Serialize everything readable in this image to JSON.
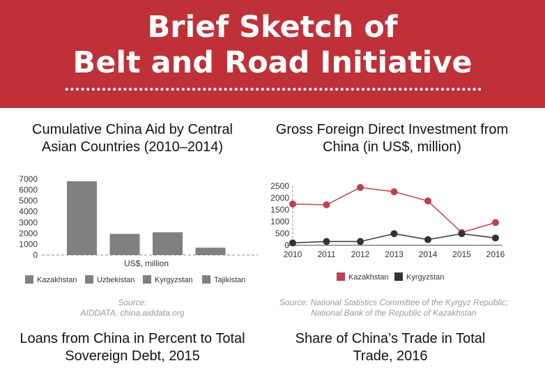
{
  "header": {
    "title_line1": "Brief Sketch of",
    "title_line2": "Belt and Road Initiative"
  },
  "aid_panel": {
    "title_line1": "Cumulative China Aid by Central",
    "title_line2": "Asian Countries (2010–2014)",
    "source_line1": "Source:",
    "source_line2": "AIDDATA, china.aiddata.org"
  },
  "fdi_panel": {
    "title_line1": "Gross Foreign Direct Investment from",
    "title_line2": "China (in US$, million)",
    "source_line1": "Source: National Statistics Committee of the Kyrgyz Republic;",
    "source_line2": "National Bank of the Republic of Kazakhstan"
  },
  "loans_panel": {
    "title_line1": "Loans from China in Percent to Total",
    "title_line2": "Sovereign Debt, 2015"
  },
  "trade_panel": {
    "title_line1": "Share of China’s Trade in Total",
    "title_line2": "Trade, 2016"
  },
  "colors": {
    "banner": "#c5323a",
    "bar": "#808080",
    "kazakhstan": "#c0404e",
    "kyrgyzstan": "#333333"
  },
  "chart_data": [
    {
      "type": "bar",
      "categories": [
        "Kazakhstan",
        "Uzbekistan",
        "Kyrgyzstan",
        "Tajikistan"
      ],
      "values": [
        6800,
        1950,
        2100,
        680
      ],
      "xlabel": "US$, million",
      "ylabel": "",
      "ylim": [
        0,
        7000
      ],
      "yticks": [
        0,
        1000,
        2000,
        3000,
        4000,
        5000,
        6000,
        7000
      ],
      "legend": {
        "position": "bottom",
        "entries": [
          "Kazakhstan",
          "Uzbekistan",
          "Kyrgyzstan",
          "Tajikistan"
        ]
      },
      "grid": false
    },
    {
      "type": "line",
      "x": [
        "2010",
        "2011",
        "2012",
        "2013",
        "2014",
        "2015",
        "2016"
      ],
      "series": [
        {
          "name": "Kazakhstan",
          "values": [
            1740,
            1710,
            2440,
            2260,
            1870,
            540,
            960
          ]
        },
        {
          "name": "Kyrgyzstan",
          "values": [
            100,
            160,
            160,
            490,
            240,
            490,
            310
          ]
        }
      ],
      "ylim": [
        0,
        2500
      ],
      "yticks": [
        0,
        500,
        1000,
        1500,
        2000,
        2500
      ],
      "legend": {
        "position": "bottom"
      },
      "grid": false
    }
  ]
}
